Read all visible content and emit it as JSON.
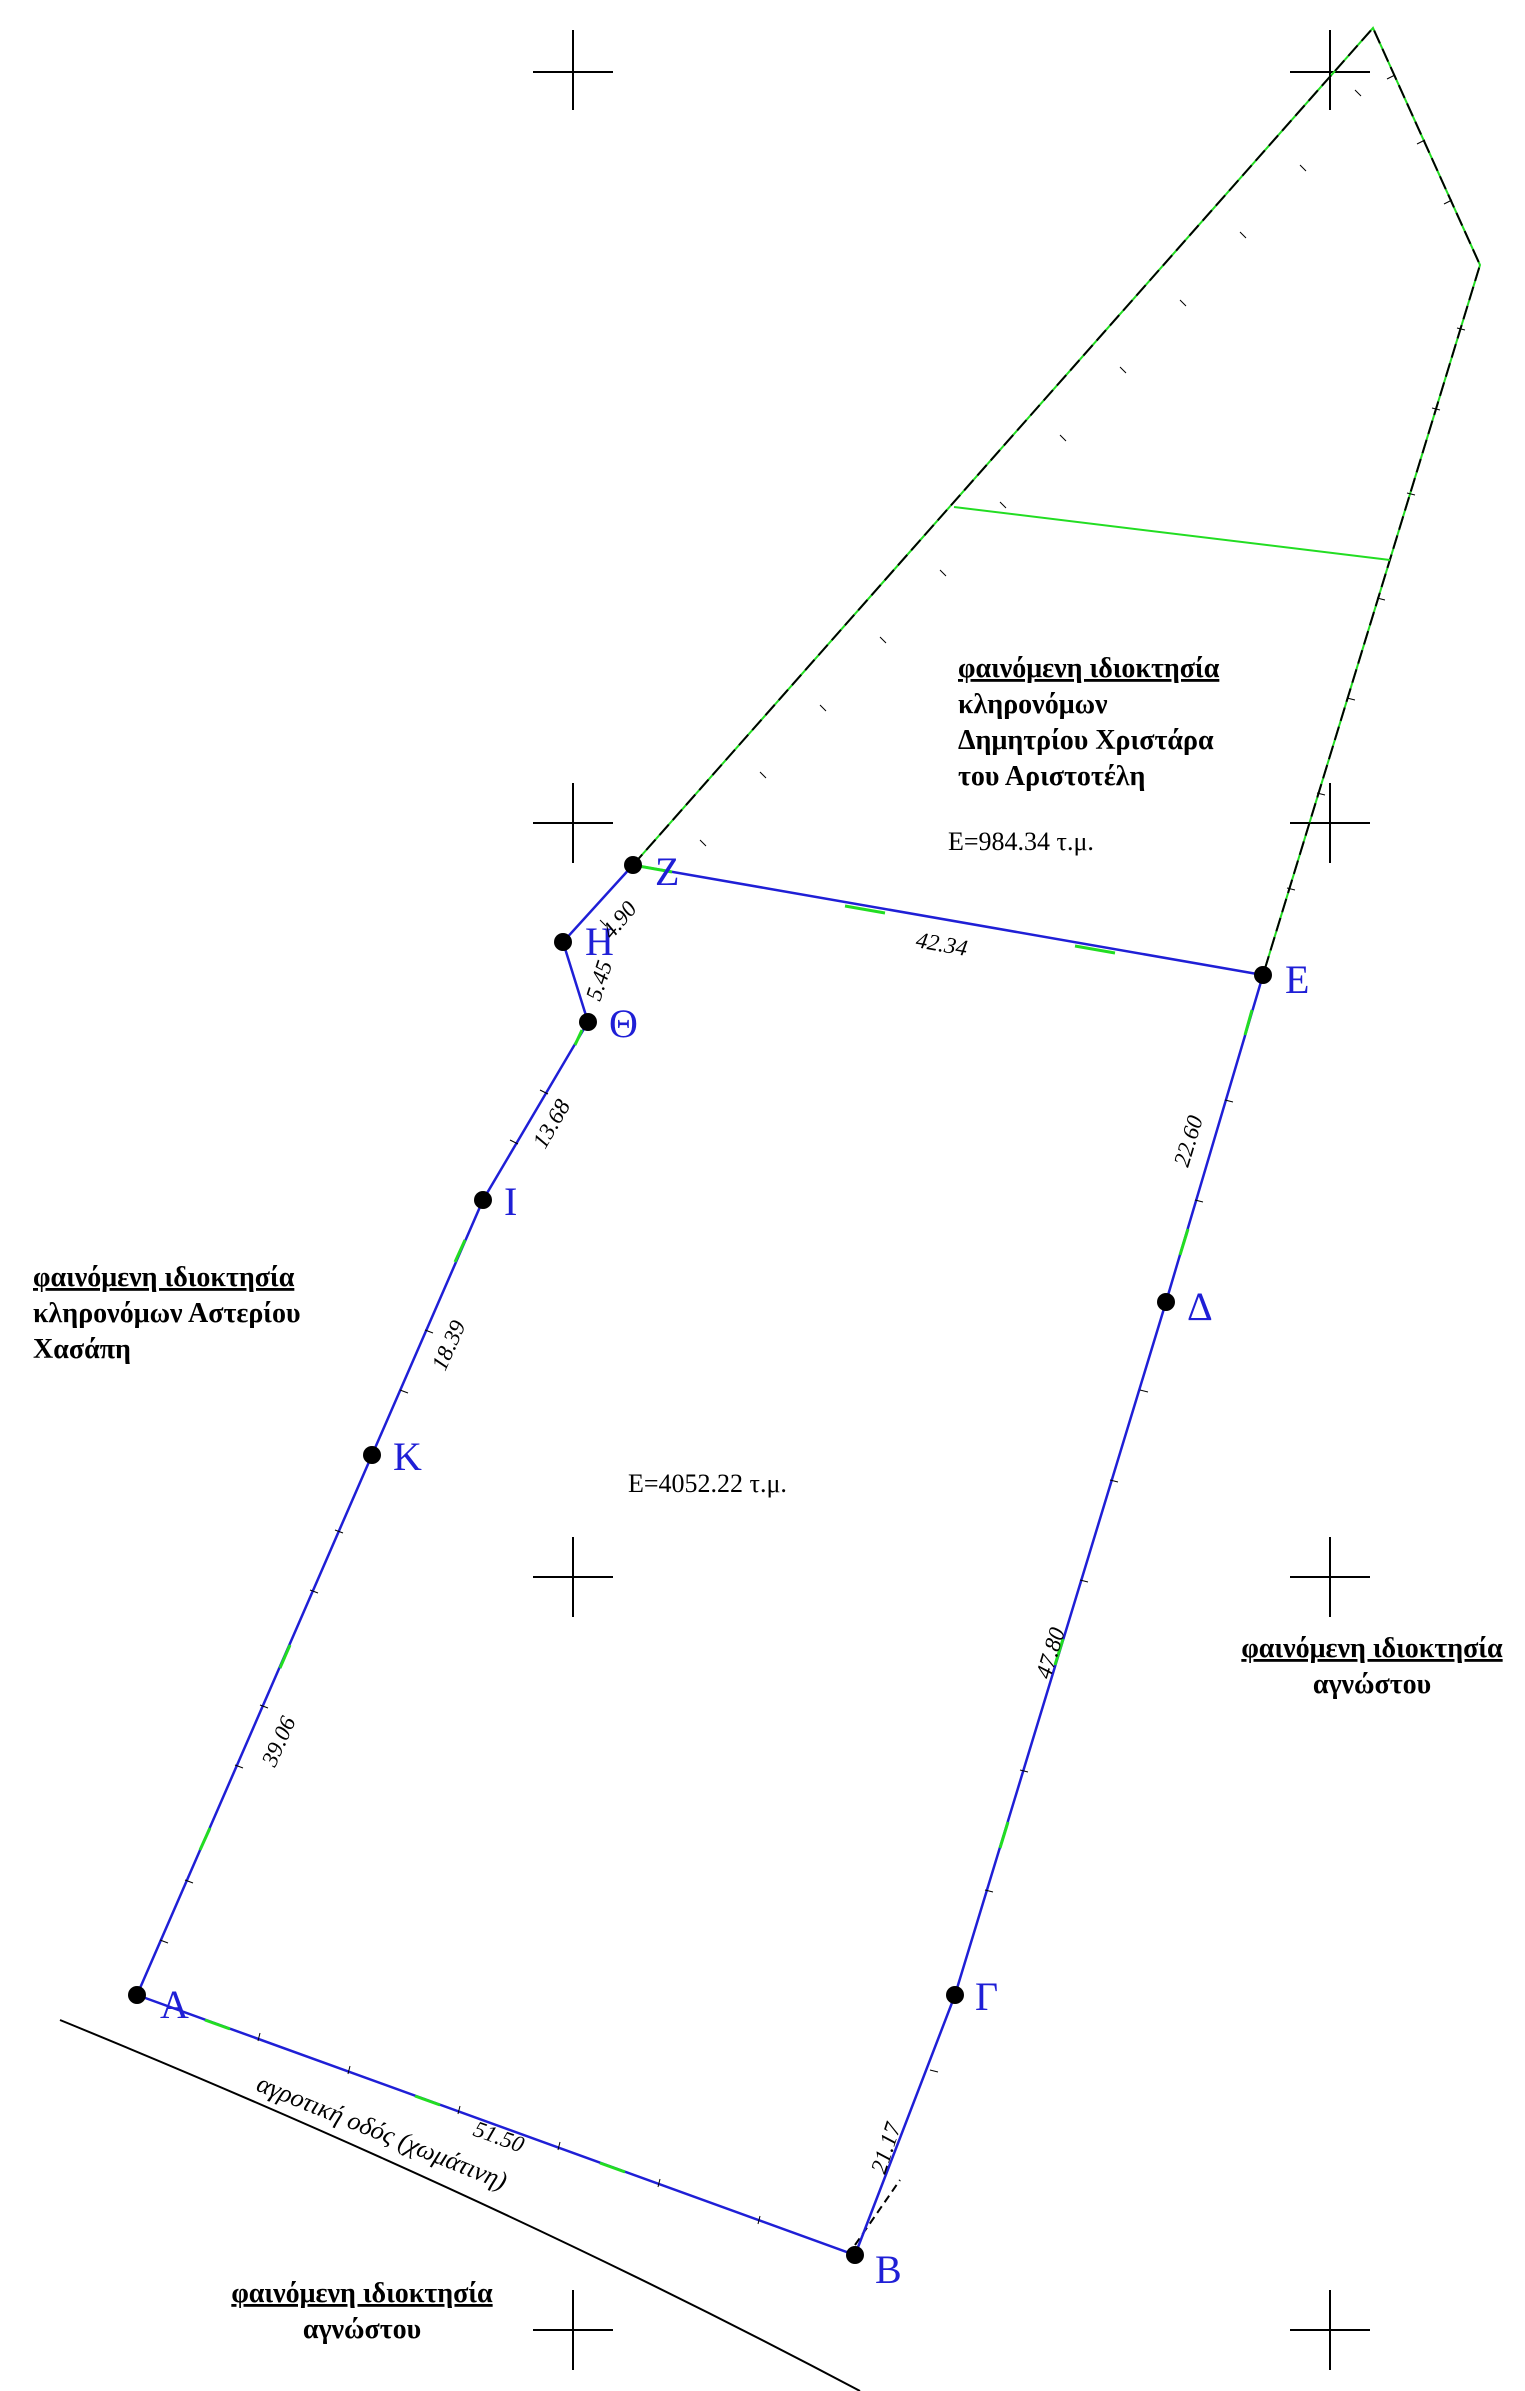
{
  "owners": {
    "north": [
      "φαινόμενη ιδιοκτησία",
      "κληρονόμων",
      "Δημητρίου Χριστάρα",
      "του Αριστοτέλη"
    ],
    "west": [
      "φαινόμενη ιδιοκτησία",
      "κληρονόμων Αστερίου",
      "Χασάπη"
    ],
    "east": [
      "φαινόμενη ιδιοκτησία",
      "αγνώστου"
    ],
    "south": [
      "φαινόμενη ιδιοκτησία",
      "αγνώστου"
    ]
  },
  "areas": {
    "main": "Ε=4052.22 τ.μ.",
    "north": "Ε=984.34 τ.μ."
  },
  "road_label": "αγροτική οδός (χωμάτινη)",
  "points": [
    "Α",
    "Β",
    "Γ",
    "Δ",
    "Ε",
    "Ζ",
    "Η",
    "Θ",
    "Ι",
    "Κ"
  ],
  "dimensions": {
    "AB": "51.50",
    "BD": "21.17",
    "DE_long": "47.80",
    "DE_short": "22.60",
    "EZ": "42.34",
    "ZH": "4.90",
    "HTh": "5.45",
    "ThI": "13.68",
    "IK": "18.39",
    "KA": "39.06"
  },
  "colors": {
    "boundary": "#1f1fd6",
    "parcel": "#22dd22",
    "dashed": "#000000"
  }
}
